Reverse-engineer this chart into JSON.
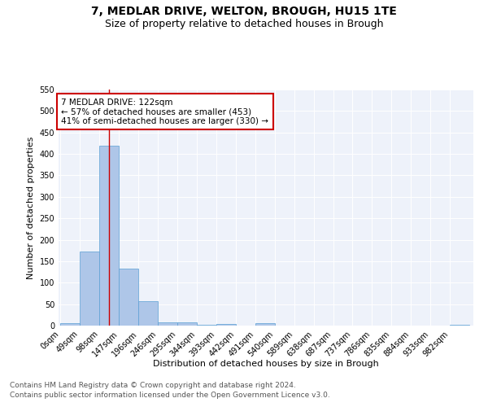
{
  "title_line1": "7, MEDLAR DRIVE, WELTON, BROUGH, HU15 1TE",
  "title_line2": "Size of property relative to detached houses in Brough",
  "xlabel": "Distribution of detached houses by size in Brough",
  "ylabel": "Number of detached properties",
  "bin_labels": [
    "0sqm",
    "49sqm",
    "98sqm",
    "147sqm",
    "196sqm",
    "246sqm",
    "295sqm",
    "344sqm",
    "393sqm",
    "442sqm",
    "491sqm",
    "540sqm",
    "589sqm",
    "638sqm",
    "687sqm",
    "737sqm",
    "786sqm",
    "835sqm",
    "884sqm",
    "933sqm",
    "982sqm"
  ],
  "bar_values": [
    5,
    173,
    420,
    133,
    57,
    8,
    8,
    2,
    4,
    0,
    5,
    0,
    0,
    0,
    0,
    0,
    0,
    0,
    0,
    0,
    2
  ],
  "bar_color": "#aec6e8",
  "bar_edge_color": "#5a9fd4",
  "property_line_x": 122,
  "bin_width": 49,
  "annotation_text": "7 MEDLAR DRIVE: 122sqm\n← 57% of detached houses are smaller (453)\n41% of semi-detached houses are larger (330) →",
  "annotation_box_color": "#ffffff",
  "annotation_box_edge": "#cc0000",
  "vline_color": "#cc0000",
  "ylim": [
    0,
    550
  ],
  "yticks": [
    0,
    50,
    100,
    150,
    200,
    250,
    300,
    350,
    400,
    450,
    500,
    550
  ],
  "background_color": "#eef2fa",
  "footer_line1": "Contains HM Land Registry data © Crown copyright and database right 2024.",
  "footer_line2": "Contains public sector information licensed under the Open Government Licence v3.0.",
  "title_fontsize": 10,
  "subtitle_fontsize": 9,
  "axis_label_fontsize": 8,
  "tick_fontsize": 7,
  "annotation_fontsize": 7.5,
  "footer_fontsize": 6.5
}
